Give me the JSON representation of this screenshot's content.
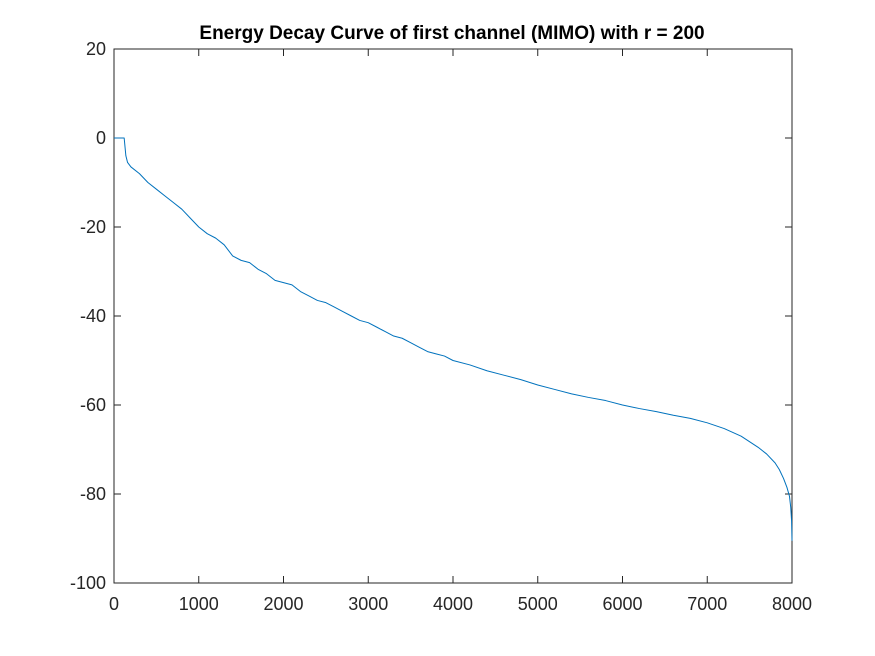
{
  "chart_data": {
    "type": "line",
    "title": "Energy Decay Curve of first channel (MIMO) with r = 200",
    "xlabel": "",
    "ylabel": "",
    "xlim": [
      0,
      8000
    ],
    "ylim": [
      -100,
      20
    ],
    "x_ticks": [
      0,
      1000,
      2000,
      3000,
      4000,
      5000,
      6000,
      7000,
      8000
    ],
    "y_ticks": [
      -100,
      -80,
      -60,
      -40,
      -20,
      0,
      20
    ],
    "x_tick_labels": [
      "0",
      "1000",
      "2000",
      "3000",
      "4000",
      "5000",
      "6000",
      "7000",
      "8000"
    ],
    "y_tick_labels": [
      "-100",
      "-80",
      "-60",
      "-40",
      "-20",
      "0",
      "20"
    ],
    "grid": false,
    "box": true,
    "series": [
      {
        "color": "#0072BD",
        "x": [
          0,
          120,
          130,
          140,
          160,
          200,
          300,
          400,
          500,
          600,
          700,
          800,
          900,
          1000,
          1100,
          1200,
          1300,
          1400,
          1500,
          1600,
          1700,
          1800,
          1900,
          2000,
          2100,
          2200,
          2300,
          2400,
          2500,
          2600,
          2700,
          2800,
          2900,
          3000,
          3100,
          3200,
          3300,
          3400,
          3500,
          3600,
          3700,
          3800,
          3900,
          4000,
          4200,
          4400,
          4600,
          4800,
          5000,
          5200,
          5400,
          5600,
          5800,
          6000,
          6200,
          6400,
          6600,
          6800,
          7000,
          7200,
          7400,
          7600,
          7700,
          7800,
          7850,
          7900,
          7940,
          7970,
          7985,
          7995,
          8000
        ],
        "y": [
          0,
          0,
          -2,
          -4,
          -5.5,
          -6.5,
          -8,
          -10,
          -11.5,
          -13,
          -14.5,
          -16,
          -18,
          -20,
          -21.5,
          -22.5,
          -24,
          -26.5,
          -27.5,
          -28,
          -29.5,
          -30.5,
          -32,
          -32.5,
          -33,
          -34.5,
          -35.5,
          -36.5,
          -37,
          -38,
          -39,
          -40,
          -41,
          -41.5,
          -42.5,
          -43.5,
          -44.5,
          -45,
          -46,
          -47,
          -48,
          -48.5,
          -49,
          -50,
          -51,
          -52.3,
          -53.3,
          -54.3,
          -55.5,
          -56.5,
          -57.5,
          -58.3,
          -59,
          -60,
          -60.8,
          -61.5,
          -62.3,
          -63,
          -64,
          -65.3,
          -67,
          -69.5,
          -71,
          -73,
          -74.5,
          -76.5,
          -78.5,
          -80.5,
          -83,
          -86,
          -90.5
        ]
      }
    ]
  }
}
